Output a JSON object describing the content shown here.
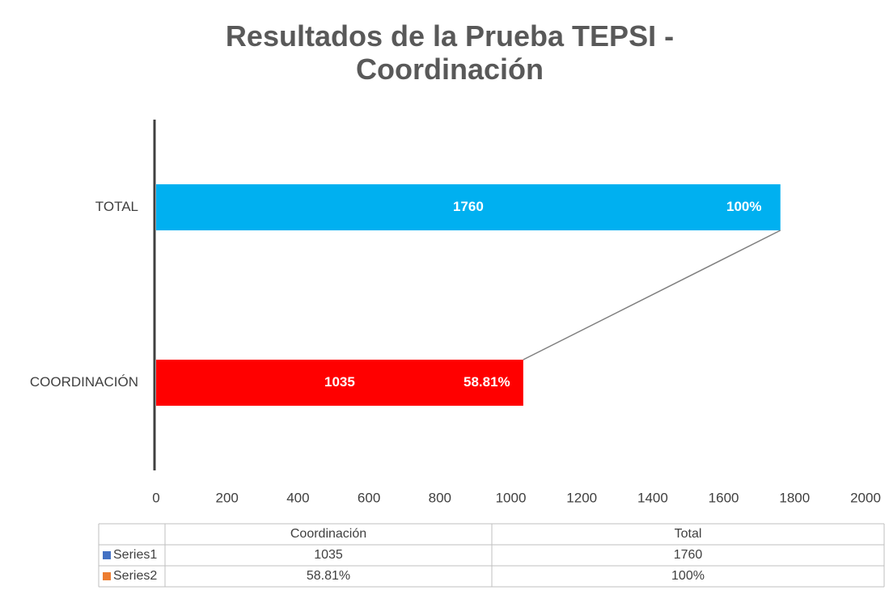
{
  "chart_data": {
    "type": "bar",
    "orientation": "horizontal",
    "title": "Resultados de la Prueba TEPSI - Coordinación",
    "categories": [
      "COORDINACIÓN",
      "TOTAL"
    ],
    "bar_colors": [
      "#ff0000",
      "#00b0f0"
    ],
    "series": [
      {
        "name": "Series1",
        "color": "#4472c4",
        "values": [
          1035,
          1760
        ]
      },
      {
        "name": "Series2",
        "color": "#ed7d31",
        "values": [
          58.81,
          100
        ],
        "value_labels": [
          "58.81%",
          "100%"
        ]
      }
    ],
    "xlim": [
      0,
      2000
    ],
    "xticks": [
      0,
      200,
      400,
      600,
      800,
      1000,
      1200,
      1400,
      1600,
      1800,
      2000
    ],
    "table_columns": [
      "Coordinación",
      "Total"
    ]
  }
}
